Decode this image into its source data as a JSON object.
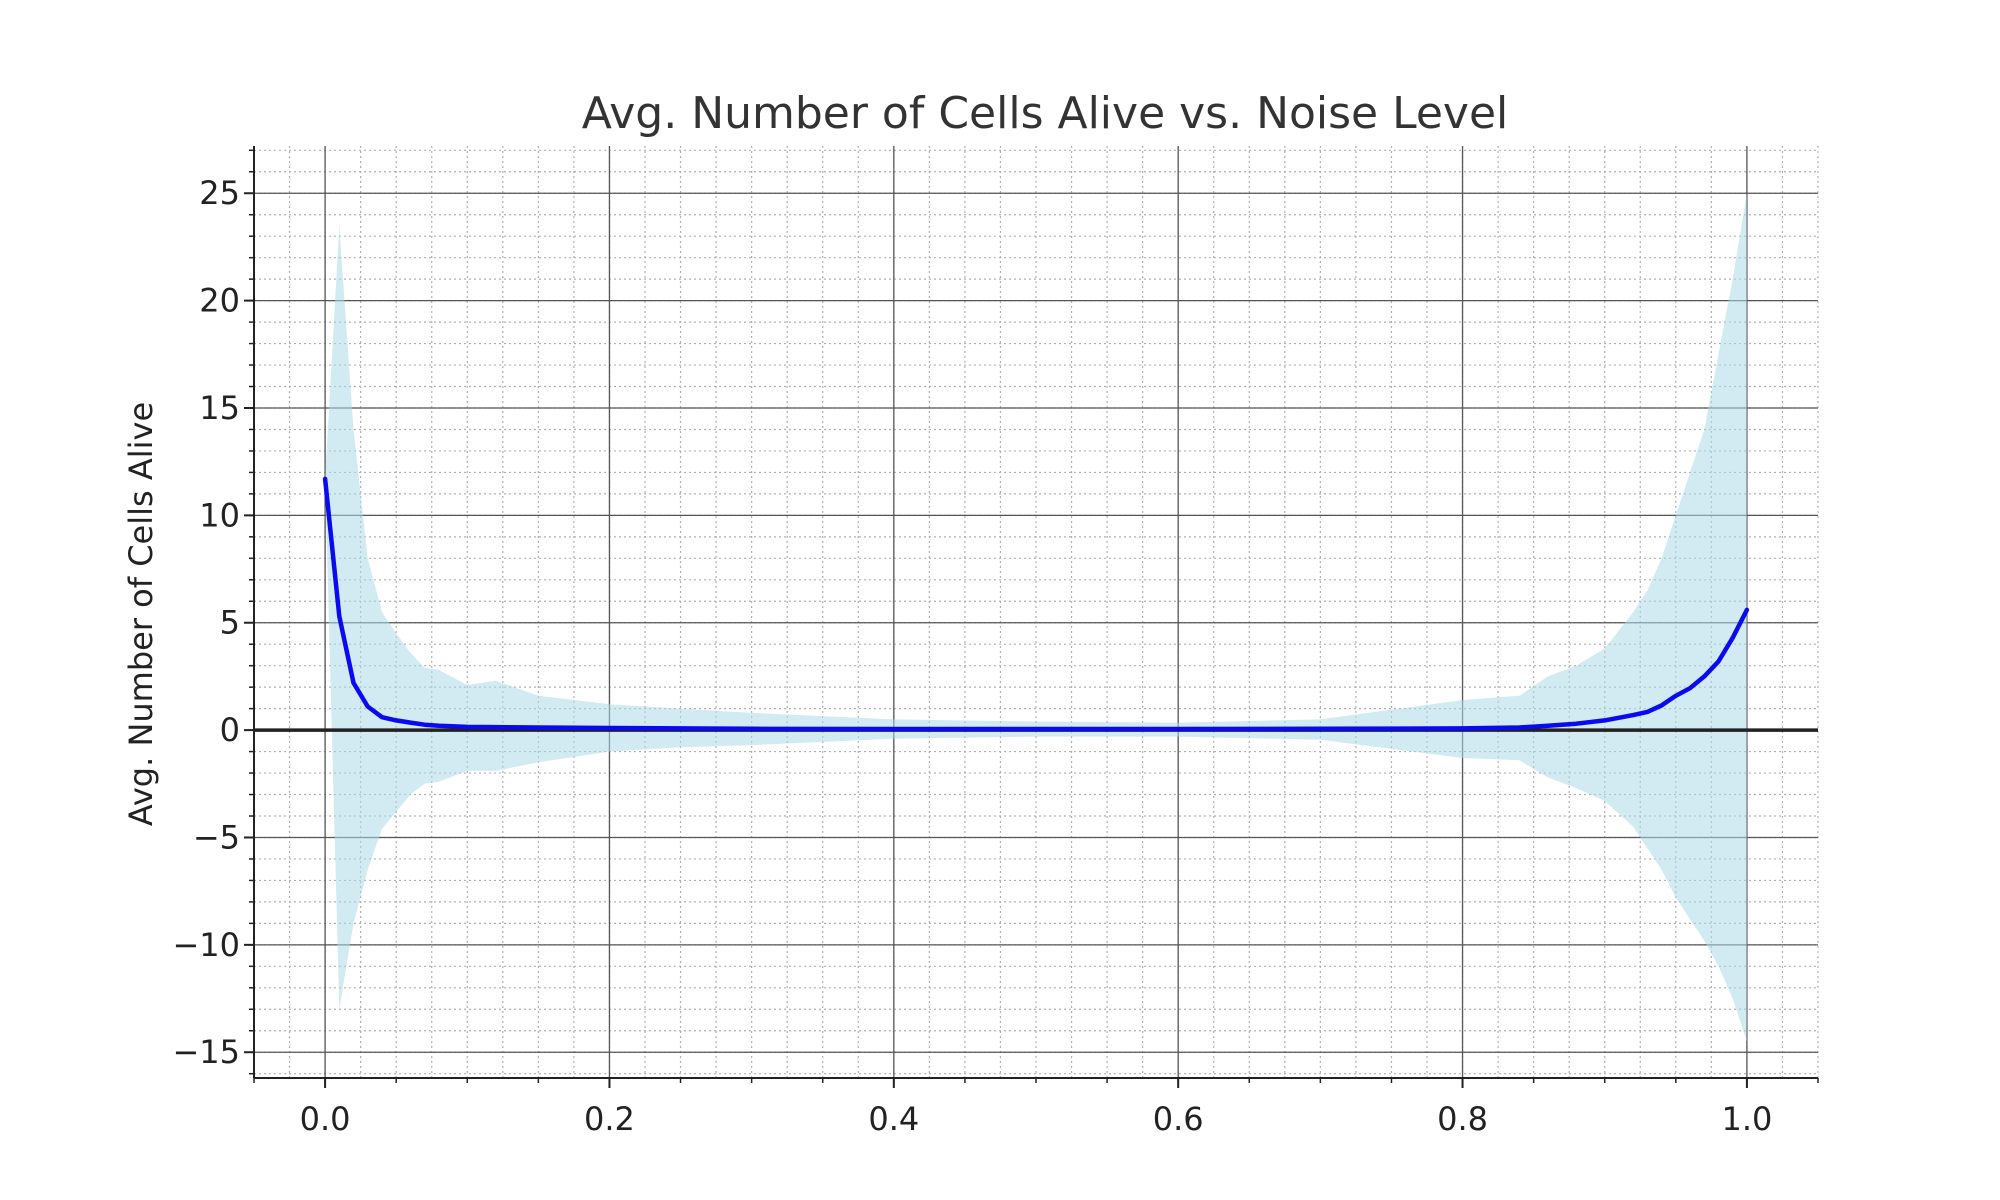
{
  "chart_data": {
    "type": "line",
    "title": "Avg. Number of Cells Alive vs. Noise Level",
    "xlabel": "",
    "ylabel": "Avg. Number of Cells Alive",
    "xlim": [
      -0.05,
      1.05
    ],
    "ylim": [
      -16.2,
      27.2
    ],
    "x_ticks": [
      0.0,
      0.2,
      0.4,
      0.6,
      0.8,
      1.0
    ],
    "x_tick_labels": [
      "0.0",
      "0.2",
      "0.4",
      "0.6",
      "0.8",
      "1.0"
    ],
    "y_ticks": [
      -15,
      -10,
      -5,
      0,
      5,
      10,
      15,
      20,
      25
    ],
    "y_tick_labels": [
      "−15",
      "−10",
      "−5",
      "0",
      "5",
      "10",
      "15",
      "20",
      "25"
    ],
    "grid": true,
    "minor_grid": true,
    "zero_line": true,
    "colors": {
      "line": "#0a0af0",
      "band": "#add8e6",
      "grid_major": "#555555",
      "grid_minor": "#b0b0b0",
      "zero_line": "#222222"
    },
    "series": [
      {
        "x": [
          0.0,
          0.01,
          0.02,
          0.03,
          0.04,
          0.05,
          0.06,
          0.07,
          0.08,
          0.1,
          0.12,
          0.15,
          0.2,
          0.25,
          0.3,
          0.4,
          0.5,
          0.6,
          0.7,
          0.8,
          0.84,
          0.86,
          0.88,
          0.9,
          0.92,
          0.93,
          0.94,
          0.95,
          0.96,
          0.97,
          0.98,
          0.99,
          1.0
        ],
        "y": [
          11.7,
          5.3,
          2.2,
          1.1,
          0.6,
          0.45,
          0.35,
          0.25,
          0.2,
          0.15,
          0.14,
          0.12,
          0.1,
          0.08,
          0.06,
          0.05,
          0.05,
          0.05,
          0.06,
          0.08,
          0.12,
          0.2,
          0.3,
          0.45,
          0.7,
          0.85,
          1.15,
          1.6,
          1.95,
          2.5,
          3.2,
          4.3,
          5.6
        ],
        "upper": [
          11.7,
          23.5,
          14.0,
          8.0,
          5.5,
          4.5,
          3.6,
          2.9,
          2.8,
          2.1,
          2.3,
          1.6,
          1.2,
          1.0,
          0.8,
          0.5,
          0.4,
          0.35,
          0.5,
          1.4,
          1.6,
          2.5,
          3.0,
          3.8,
          5.5,
          6.5,
          8.0,
          10.0,
          12.0,
          14.0,
          17.5,
          21.0,
          25.0
        ],
        "lower": [
          11.7,
          -13.0,
          -9.0,
          -6.5,
          -4.6,
          -3.8,
          -3.0,
          -2.5,
          -2.4,
          -1.9,
          -1.9,
          -1.5,
          -1.0,
          -0.8,
          -0.7,
          -0.4,
          -0.3,
          -0.3,
          -0.45,
          -1.3,
          -1.4,
          -2.2,
          -2.7,
          -3.3,
          -4.5,
          -5.5,
          -6.5,
          -7.8,
          -8.8,
          -9.8,
          -11.0,
          -12.5,
          -14.5
        ]
      }
    ]
  }
}
